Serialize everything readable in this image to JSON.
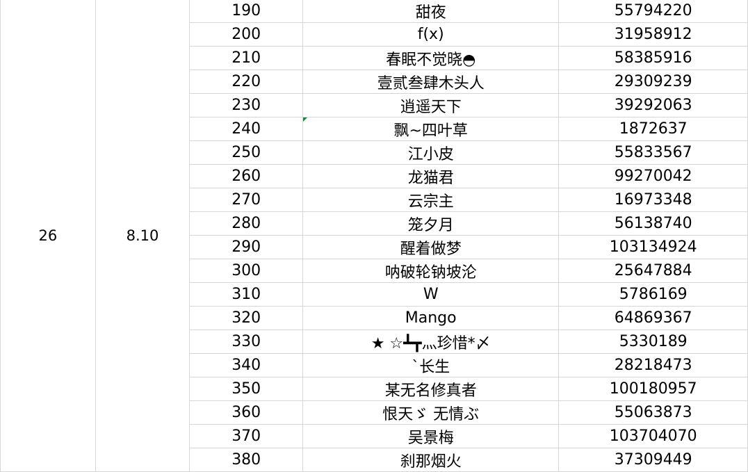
{
  "group": {
    "number": "26",
    "date": "8.10"
  },
  "rows": [
    {
      "rank": "190",
      "name": "甜夜",
      "id": "55794220"
    },
    {
      "rank": "200",
      "name": "f(x)",
      "id": "31958912"
    },
    {
      "rank": "210",
      "name": "春眠不觉晓◓",
      "id": "58385916"
    },
    {
      "rank": "220",
      "name": "壹贰叁肆木头人",
      "id": "29309239"
    },
    {
      "rank": "230",
      "name": "逍遥天下",
      "id": "39292063"
    },
    {
      "rank": "240",
      "name": "飘~四叶草",
      "id": "1872637"
    },
    {
      "rank": "250",
      "name": "江小皮",
      "id": "55833567"
    },
    {
      "rank": "260",
      "name": "龙猫君",
      "id": "99270042"
    },
    {
      "rank": "270",
      "name": "云宗主",
      "id": "16973348"
    },
    {
      "rank": "280",
      "name": "笼夕月",
      "id": "56138740"
    },
    {
      "rank": "290",
      "name": "醒着做梦",
      "id": "103134924"
    },
    {
      "rank": "300",
      "name": "呐破轮钠坡沦",
      "id": "25647884"
    },
    {
      "rank": "310",
      "name": "W",
      "id": "5786169"
    },
    {
      "rank": "320",
      "name": "Mango",
      "id": "64869367"
    },
    {
      "rank": "330",
      "name": "★ ☆┻┳灬珍惜*〆",
      "id": "5330189"
    },
    {
      "rank": "340",
      "name": "`长生",
      "id": "28218473"
    },
    {
      "rank": "350",
      "name": "某无名修真者",
      "id": "100180957"
    },
    {
      "rank": "360",
      "name": "恨天ゞ 无情ぶ",
      "id": "55063873"
    },
    {
      "rank": "370",
      "name": "吴景梅",
      "id": "103704070"
    },
    {
      "rank": "380",
      "name": "刹那烟火",
      "id": "37309449"
    }
  ]
}
